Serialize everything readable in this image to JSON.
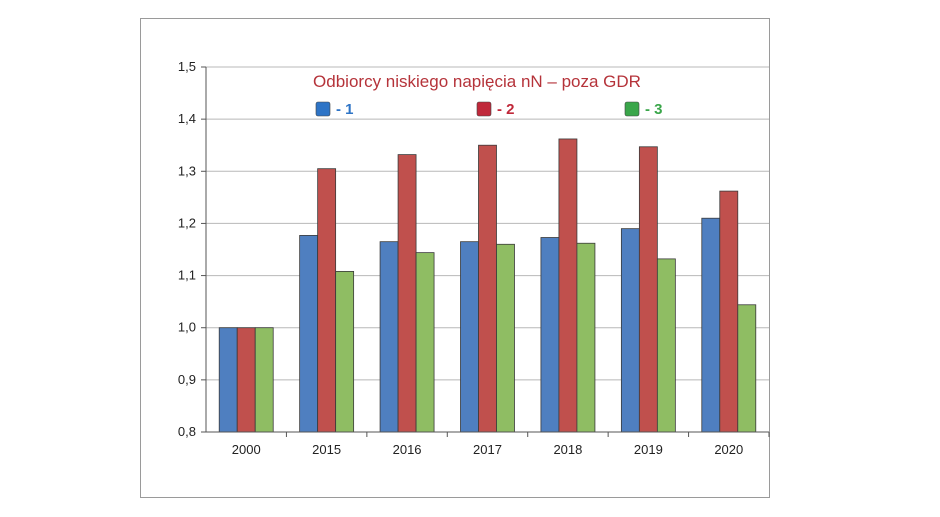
{
  "chart_data": {
    "type": "bar",
    "title": "Odbiorcy niskiego napięcia nN – poza GDR",
    "xlabel": "",
    "ylabel": "",
    "ylim": [
      0.8,
      1.5
    ],
    "yticks": [
      "0,8",
      "0,9",
      "1,0",
      "1,1",
      "1,2",
      "1,3",
      "1,4",
      "1,5"
    ],
    "ytick_values": [
      0.8,
      0.9,
      1.0,
      1.1,
      1.2,
      1.3,
      1.4,
      1.5
    ],
    "grid": true,
    "legend_position": "top",
    "categories": [
      "2000",
      "2015",
      "2016",
      "2017",
      "2018",
      "2019",
      "2020"
    ],
    "series": [
      {
        "name": "- 1",
        "color": "#4f7fc0",
        "legend_color": "#2e74c6",
        "values": [
          1.0,
          1.177,
          1.165,
          1.165,
          1.173,
          1.19,
          1.21
        ]
      },
      {
        "name": "- 2",
        "color": "#c0504d",
        "legend_color": "#c0283a",
        "values": [
          1.0,
          1.305,
          1.332,
          1.35,
          1.362,
          1.347,
          1.262
        ]
      },
      {
        "name": "- 3",
        "color": "#8fbd63",
        "legend_color": "#3aa64a",
        "values": [
          1.0,
          1.108,
          1.144,
          1.16,
          1.162,
          1.132,
          1.044
        ]
      }
    ]
  }
}
